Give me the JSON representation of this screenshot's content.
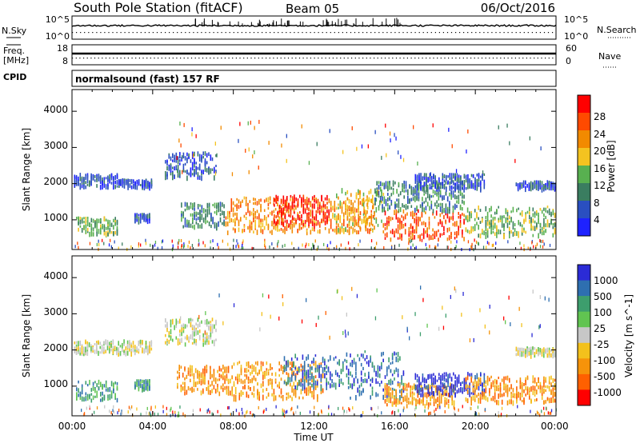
{
  "header": {
    "station": "South Pole Station (fitACF)",
    "beam": "Beam 05",
    "date": "06/Oct/2016",
    "cpid_label": "CPID",
    "cpid_text": "normalsound (fast) 157 RF"
  },
  "noise_panel": {
    "left_label": "N.Sky",
    "right_label": "N.Search",
    "left_ticks": [
      "10^5",
      "10^0"
    ],
    "right_ticks": [
      "10^5",
      "10^0"
    ]
  },
  "freq_panel": {
    "left_label_line1": "Freq.",
    "left_label_line2": "[MHz]",
    "right_label": "Nave",
    "left_ticks": [
      "18",
      "8"
    ],
    "right_ticks": [
      "60",
      "0"
    ]
  },
  "x_axis": {
    "label": "Time UT",
    "tick_labels": [
      "00:00",
      "04:00",
      "08:00",
      "12:00",
      "16:00",
      "20:00",
      "00:00"
    ],
    "range_hours": [
      0,
      24
    ]
  },
  "power_panel": {
    "ylabel": "Slant Range [km]",
    "y_ticks": [
      "1000",
      "2000",
      "3000",
      "4000"
    ],
    "colorbar_label": "Power [dB]",
    "colorbar_ticks": [
      "4",
      "8",
      "12",
      "16",
      "20",
      "24",
      "28"
    ],
    "colors": [
      "#1e22ff",
      "#2a4fc0",
      "#3a7d60",
      "#58b050",
      "#f4c320",
      "#f28a00",
      "#ff4a00",
      "#ff0000"
    ]
  },
  "velocity_panel": {
    "ylabel": "Slant Range [km]",
    "y_ticks": [
      "1000",
      "2000",
      "3000",
      "4000"
    ],
    "colorbar_label": "Velocity [m s^-1]",
    "colorbar_ticks": [
      "1000",
      "500",
      "100",
      "25",
      "-25",
      "-100",
      "-500",
      "-1000"
    ],
    "colors": [
      "#2b2bd6",
      "#2e6fb0",
      "#3d9e6d",
      "#61c451",
      "#c7c7c7",
      "#f3c11c",
      "#f6930a",
      "#ff6000",
      "#ff0000"
    ]
  },
  "chart_data": {
    "type": "heatmap",
    "x_unit": "hours UT",
    "y_unit": "km",
    "ylim": [
      180,
      4600
    ],
    "power_regions": [
      {
        "t0": 0.1,
        "t1": 2.3,
        "r0": 1950,
        "r1": 2300,
        "level": 1
      },
      {
        "t0": 2.3,
        "t1": 4.0,
        "r0": 1950,
        "r1": 2150,
        "level": 1
      },
      {
        "t0": 4.6,
        "t1": 7.2,
        "r0": 2200,
        "r1": 2900,
        "level": 1
      },
      {
        "t0": 0.2,
        "t1": 2.3,
        "r0": 650,
        "r1": 1100,
        "level": 3
      },
      {
        "t0": 3.1,
        "t1": 3.9,
        "r0": 1000,
        "r1": 1200,
        "level": 1
      },
      {
        "t0": 5.4,
        "t1": 7.6,
        "r0": 850,
        "r1": 1500,
        "level": 2
      },
      {
        "t0": 7.6,
        "t1": 15.0,
        "r0": 700,
        "r1": 1650,
        "level": 5
      },
      {
        "t0": 10.0,
        "t1": 12.8,
        "r0": 900,
        "r1": 1700,
        "level": 7
      },
      {
        "t0": 13.0,
        "t1": 15.5,
        "r0": 700,
        "r1": 1900,
        "level": 4
      },
      {
        "t0": 15.5,
        "t1": 19.5,
        "r0": 500,
        "r1": 1300,
        "level": 6
      },
      {
        "t0": 15.0,
        "t1": 19.5,
        "r0": 1300,
        "r1": 2100,
        "level": 2
      },
      {
        "t0": 17.0,
        "t1": 20.5,
        "r0": 1900,
        "r1": 2300,
        "level": 1
      },
      {
        "t0": 19.5,
        "t1": 24.0,
        "r0": 600,
        "r1": 1400,
        "level": 3
      },
      {
        "t0": 22.0,
        "t1": 24.0,
        "r0": 1900,
        "r1": 2100,
        "level": 1
      }
    ],
    "velocity_regions": [
      {
        "t0": 0.1,
        "t1": 4.0,
        "r0": 1950,
        "r1": 2300,
        "level": 4
      },
      {
        "t0": 4.6,
        "t1": 7.2,
        "r0": 2200,
        "r1": 2900,
        "level": 4
      },
      {
        "t0": 0.2,
        "t1": 2.3,
        "r0": 650,
        "r1": 1200,
        "level": 2
      },
      {
        "t0": 3.1,
        "t1": 3.9,
        "r0": 950,
        "r1": 1200,
        "level": 2
      },
      {
        "t0": 5.2,
        "t1": 8.0,
        "r0": 850,
        "r1": 1600,
        "level": 6
      },
      {
        "t0": 8.0,
        "t1": 12.5,
        "r0": 700,
        "r1": 1700,
        "level": 6
      },
      {
        "t0": 10.5,
        "t1": 13.5,
        "r0": 1000,
        "r1": 1900,
        "level": 1
      },
      {
        "t0": 13.5,
        "t1": 16.5,
        "r0": 700,
        "r1": 2000,
        "level": 1
      },
      {
        "t0": 15.5,
        "t1": 19.0,
        "r0": 500,
        "r1": 1100,
        "level": 6
      },
      {
        "t0": 17.0,
        "t1": 20.5,
        "r0": 800,
        "r1": 1400,
        "level": 0
      },
      {
        "t0": 19.5,
        "t1": 24.0,
        "r0": 600,
        "r1": 1300,
        "level": 6
      },
      {
        "t0": 22.0,
        "t1": 24.0,
        "r0": 1900,
        "r1": 2100,
        "level": 4
      }
    ]
  }
}
